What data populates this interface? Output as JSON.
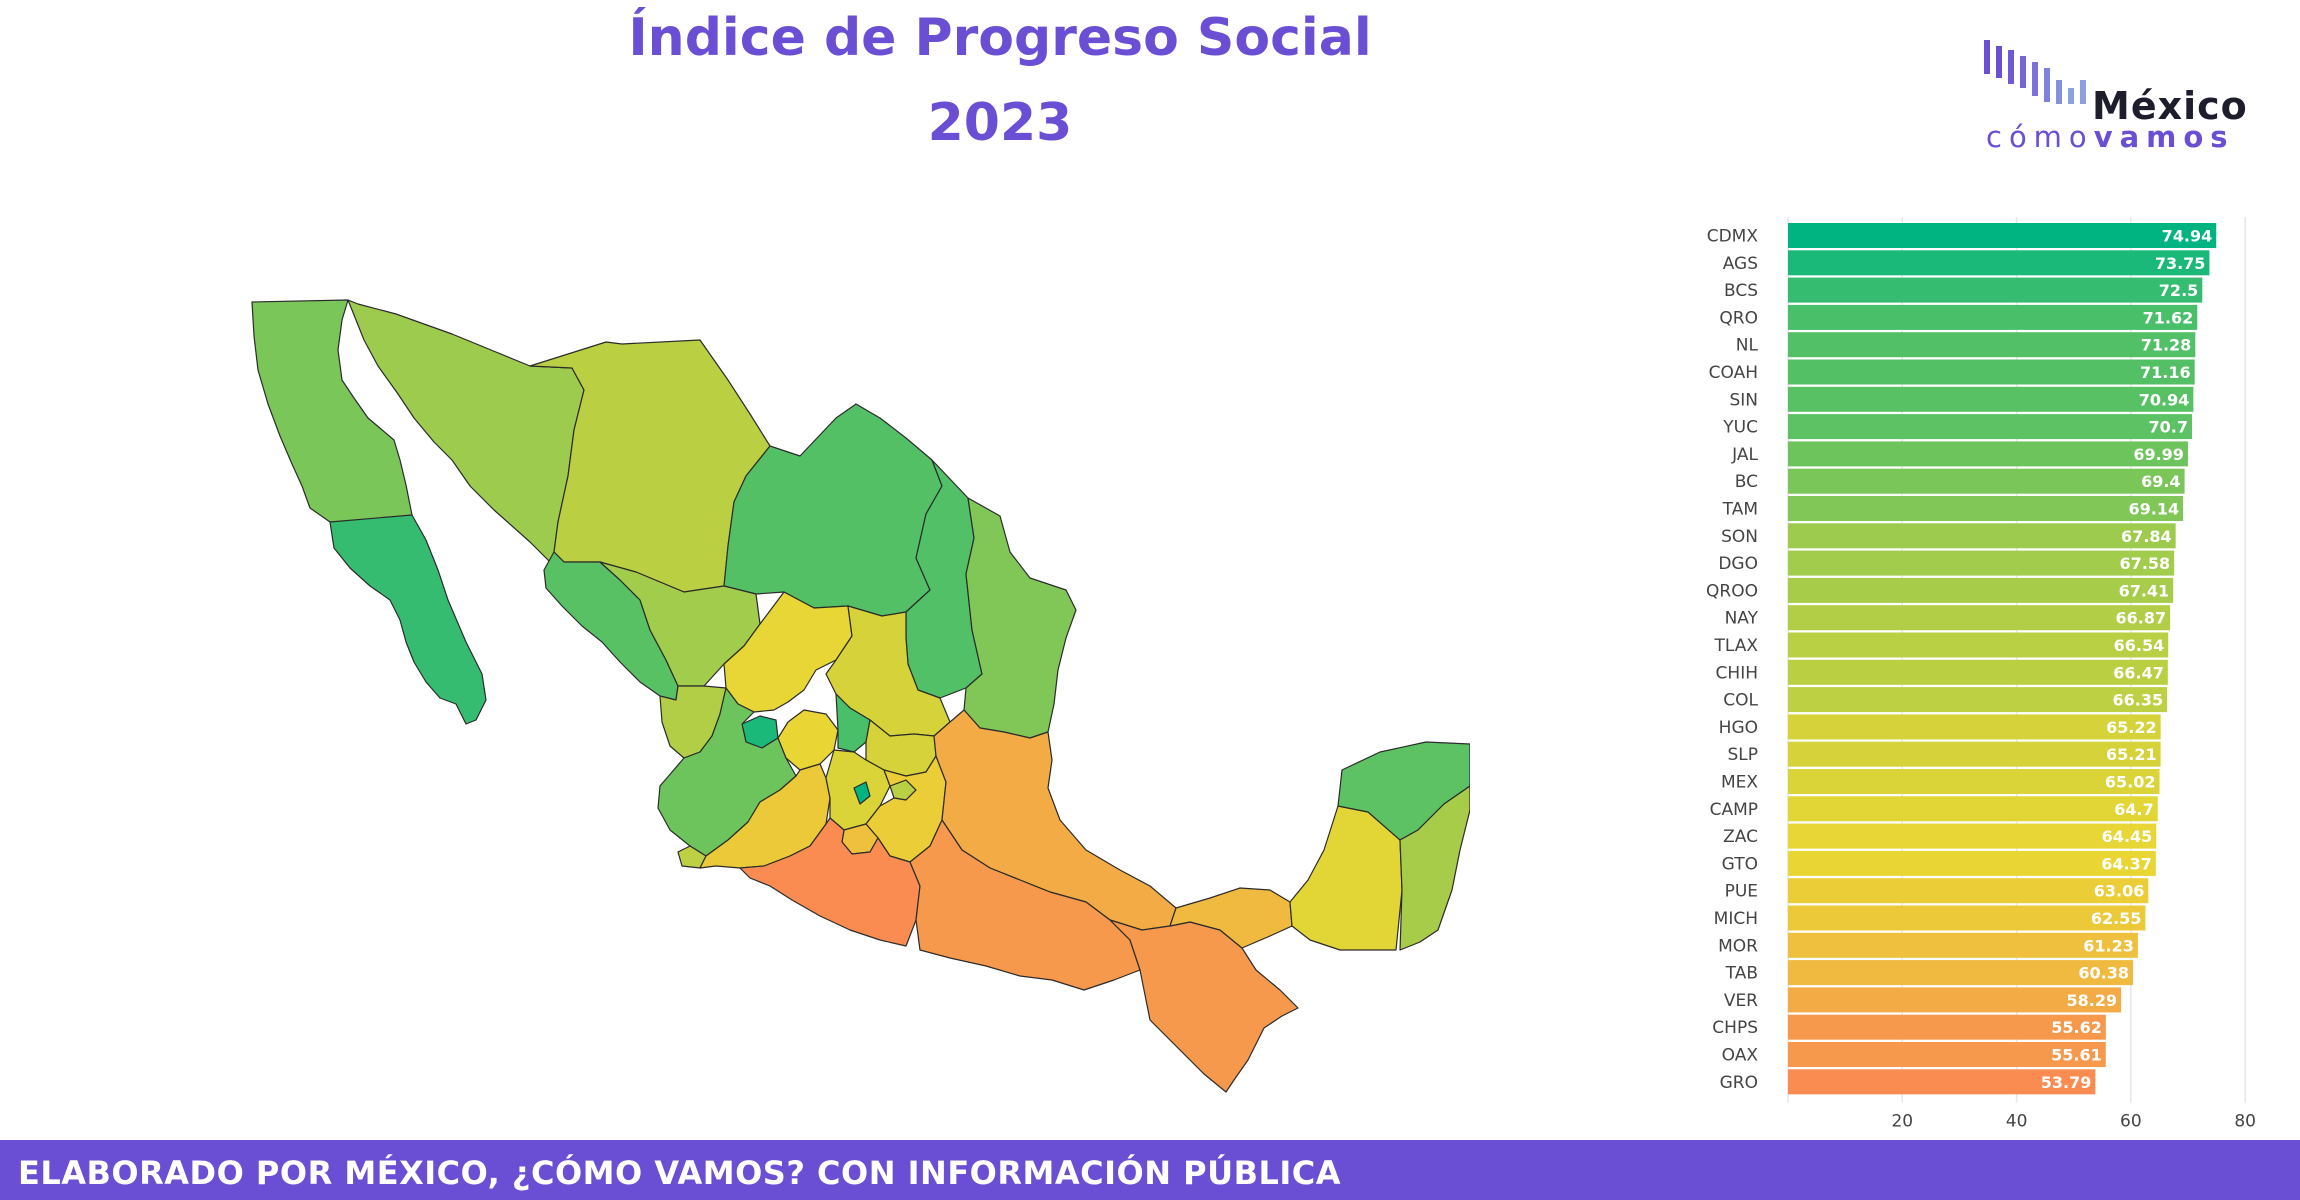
{
  "header": {
    "title": "Índice de Progreso Social",
    "year": "2023"
  },
  "logo": {
    "word_top": "México",
    "word_bottom_light": "cómo",
    "word_bottom_bold": "vamos",
    "colors": [
      "#6a4fd4",
      "#7a82d8",
      "#8aa2e0"
    ]
  },
  "footer": {
    "text": "ELABORADO POR MÉXICO, ¿CÓMO VAMOS? CON INFORMACIÓN PÚBLICA",
    "color": "#6a4fd4"
  },
  "map": {
    "description_colors": {
      "high": "#00b482",
      "mid": "#c8d24a",
      "low": "#fa8c52"
    },
    "state_values": {
      "BC": 69.4,
      "BCS": 72.5,
      "SON": 67.84,
      "CHIH": 66.47,
      "COAH": 71.16,
      "NL": 71.28,
      "TAM": 69.14,
      "SIN": 70.94,
      "DGO": 67.58,
      "ZAC": 64.45,
      "NAY": 66.87,
      "AGS": 73.75,
      "SLP": 65.21,
      "JAL": 69.99,
      "GTO": 64.37,
      "QRO": 71.62,
      "HGO": 65.22,
      "COL": 66.35,
      "MICH": 62.55,
      "MEX": 65.02,
      "CDMX": 74.94,
      "TLAX": 66.54,
      "PUE": 63.06,
      "MOR": 61.23,
      "VER": 58.29,
      "GRO": 53.79,
      "OAX": 55.61,
      "CHPS": 55.62,
      "TAB": 60.38,
      "CAMP": 64.7,
      "YUC": 70.7,
      "QROO": 67.41
    }
  },
  "chart_data": {
    "type": "bar",
    "orientation": "horizontal",
    "categories": [
      "CDMX",
      "AGS",
      "BCS",
      "QRO",
      "NL",
      "COAH",
      "SIN",
      "YUC",
      "JAL",
      "BC",
      "TAM",
      "SON",
      "DGO",
      "QROO",
      "NAY",
      "TLAX",
      "CHIH",
      "COL",
      "HGO",
      "SLP",
      "MEX",
      "CAMP",
      "ZAC",
      "GTO",
      "PUE",
      "MICH",
      "MOR",
      "TAB",
      "VER",
      "CHPS",
      "OAX",
      "GRO"
    ],
    "values": [
      74.94,
      73.75,
      72.5,
      71.62,
      71.28,
      71.16,
      70.94,
      70.7,
      69.99,
      69.4,
      69.14,
      67.84,
      67.58,
      67.41,
      66.87,
      66.54,
      66.47,
      66.35,
      65.22,
      65.21,
      65.02,
      64.7,
      64.45,
      64.37,
      63.06,
      62.55,
      61.23,
      60.38,
      58.29,
      55.62,
      55.61,
      53.79
    ],
    "value_labels": [
      "74.94",
      "73.75",
      "72.5",
      "71.62",
      "71.28",
      "71.16",
      "70.94",
      "70.7",
      "69.99",
      "69.4",
      "69.14",
      "67.84",
      "67.58",
      "67.41",
      "66.87",
      "66.54",
      "66.47",
      "66.35",
      "65.22",
      "65.21",
      "65.02",
      "64.7",
      "64.45",
      "64.37",
      "63.06",
      "62.55",
      "61.23",
      "60.38",
      "58.29",
      "55.62",
      "55.61",
      "53.79"
    ],
    "xlim": [
      0,
      84
    ],
    "xticks": [
      20,
      40,
      60,
      80
    ],
    "grid": true,
    "color_scale": [
      "#fa8c52",
      "#e9d634",
      "#00b482"
    ],
    "color_domain": [
      53.79,
      64.37,
      74.94
    ]
  }
}
